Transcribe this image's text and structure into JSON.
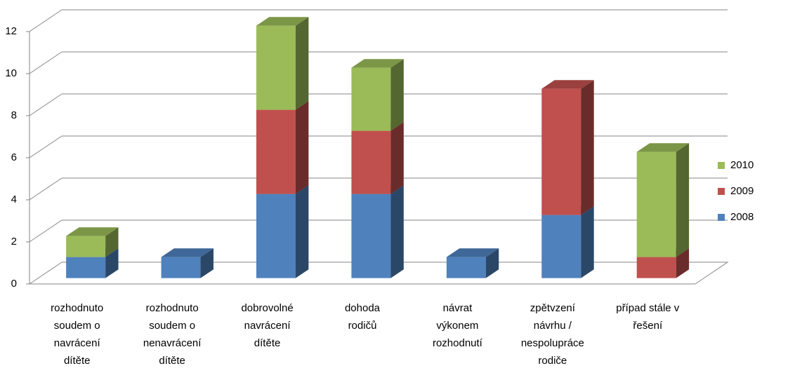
{
  "chart_data": {
    "type": "bar3d-stacked",
    "categories": [
      [
        "rozhodnuto",
        "soudem o",
        "navrácení",
        "dítěte"
      ],
      [
        "rozhodnuto",
        "soudem o",
        "nenavrácení",
        "dítěte"
      ],
      [
        "dobrovolné",
        "navrácení",
        "dítěte"
      ],
      [
        "dohoda",
        "rodičů"
      ],
      [
        "návrat",
        "výkonem",
        "rozhodnutí"
      ],
      [
        "zpětvzení",
        "návrhu /",
        "nespolupráce",
        "rodiče"
      ],
      [
        "případ stále v",
        "řešení"
      ]
    ],
    "series": [
      {
        "name": "2008",
        "color": "#4f81bd",
        "values": [
          1,
          1,
          4,
          4,
          1,
          3,
          0
        ]
      },
      {
        "name": "2009",
        "color": "#c0504d",
        "values": [
          0,
          0,
          4,
          3,
          0,
          6,
          1
        ]
      },
      {
        "name": "2010",
        "color": "#9bbb59",
        "values": [
          1,
          0,
          4,
          3,
          0,
          0,
          5
        ]
      }
    ],
    "ylim": [
      0,
      12
    ],
    "yticks": [
      0,
      2,
      4,
      6,
      8,
      10,
      12
    ],
    "grid": true,
    "legend": "right"
  }
}
